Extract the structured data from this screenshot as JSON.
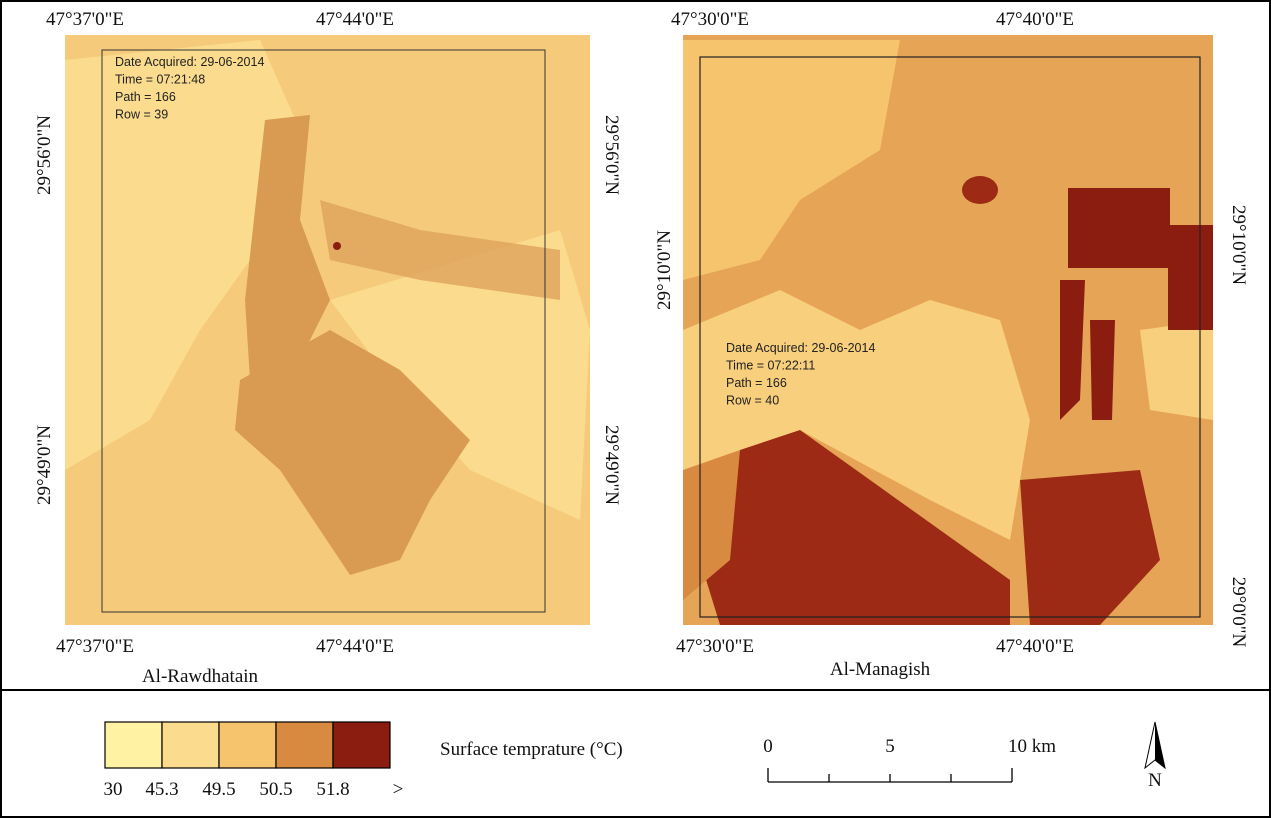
{
  "maps": [
    {
      "name": "Al-Rawdhatain",
      "top_labels": [
        "47°37'0\"E",
        "47°44'0\"E"
      ],
      "bottom_labels": [
        "47°37'0\"E",
        "47°44'0\"E"
      ],
      "left_labels": [
        "29°56'0\"N",
        "29°49'0\"N"
      ],
      "right_labels": [
        "29°56'0\"N",
        "29°49'0\"N"
      ],
      "info": [
        "Date Acquired: 29-06-2014",
        "Time = 07:21:48",
        "Path = 166",
        "Row = 39"
      ]
    },
    {
      "name": "Al-Managish",
      "top_labels": [
        "47°30'0\"E",
        "47°40'0\"E"
      ],
      "bottom_labels": [
        "47°30'0\"E",
        "47°40'0\"E"
      ],
      "left_labels": [
        "29°10'0\"N"
      ],
      "right_labels": [
        "29°10'0\"N",
        "29°0'0\"N"
      ],
      "info": [
        "Date Acquired: 29-06-2014",
        "Time = 07:22:11",
        "Path = 166",
        "Row = 40"
      ]
    }
  ],
  "legend": {
    "title": "Surface temprature (°C)",
    "colors": [
      "#fff3a3",
      "#fbdc8e",
      "#f5c46d",
      "#d88a40",
      "#8a1d10"
    ],
    "labels": [
      "30",
      "45.3",
      "49.5",
      "50.5",
      "51.8",
      ">"
    ]
  },
  "scale_bar": {
    "labels": [
      "0",
      "5",
      "10 km"
    ]
  },
  "north_label": "N"
}
